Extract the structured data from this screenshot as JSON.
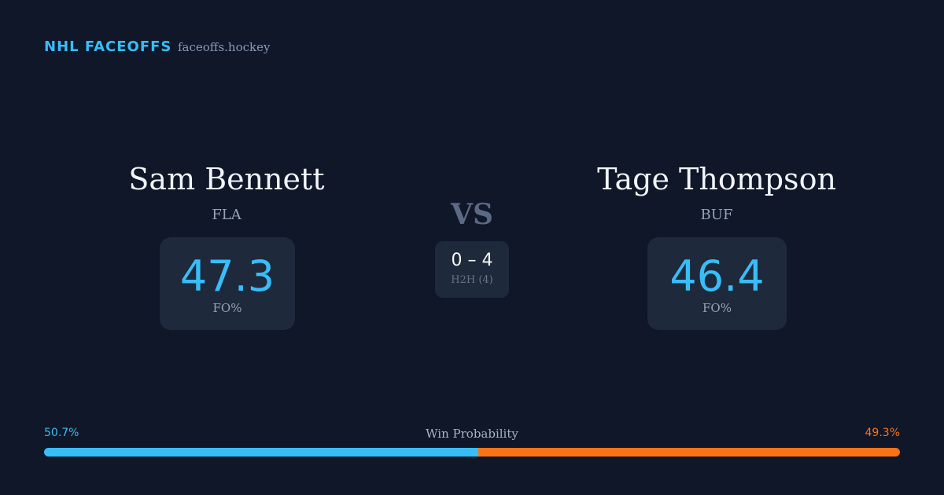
{
  "header": {
    "brand": "NHL FACEOFFS",
    "site": "faceoffs.hockey"
  },
  "players": [
    {
      "name": "Sam Bennett",
      "team": "FLA",
      "value": 47.3,
      "value_label": "FO%"
    },
    {
      "name": "Tage Thompson",
      "team": "BUF",
      "value": 46.4,
      "value_label": "FO%"
    }
  ],
  "vs": "VS",
  "h2h": {
    "score": "0 – 4",
    "label": "H2H (4)"
  },
  "win_probability": {
    "title": "Win Probability",
    "left": {
      "value": 50.7,
      "label": "50.7%",
      "color": "#38bdf8"
    },
    "right": {
      "value": 49.3,
      "label": "49.3%",
      "color": "#f97316"
    }
  }
}
